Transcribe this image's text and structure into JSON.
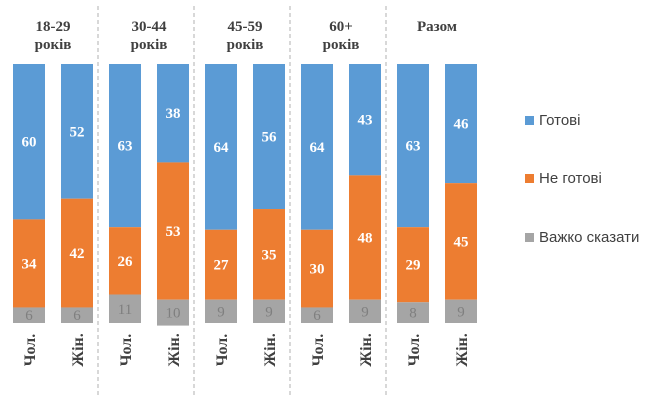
{
  "chart_data": {
    "type": "bar",
    "stacked": true,
    "percent": true,
    "ylim": [
      0,
      100
    ],
    "groups": [
      {
        "label_line1": "18-29",
        "label_line2": "років",
        "categories": [
          "Чол.",
          "Жін."
        ]
      },
      {
        "label_line1": "30-44",
        "label_line2": "років",
        "categories": [
          "Чол.",
          "Жін."
        ]
      },
      {
        "label_line1": "45-59",
        "label_line2": "років",
        "categories": [
          "Чол.",
          "Жін."
        ]
      },
      {
        "label_line1": "60+",
        "label_line2": "років",
        "categories": [
          "Чол.",
          "Жін."
        ]
      },
      {
        "label_line1": "Разом",
        "label_line2": "",
        "categories": [
          "Чол.",
          "Жін."
        ]
      }
    ],
    "series": [
      {
        "name": "Готові",
        "color": "#5b9bd5",
        "values": [
          60,
          52,
          63,
          38,
          64,
          56,
          64,
          43,
          63,
          46
        ]
      },
      {
        "name": "Не готові",
        "color": "#ed7d31",
        "values": [
          34,
          42,
          26,
          53,
          27,
          35,
          30,
          48,
          29,
          45
        ]
      },
      {
        "name": "Важко сказати",
        "color": "#a5a5a5",
        "values": [
          6,
          6,
          11,
          10,
          9,
          9,
          6,
          9,
          8,
          9
        ]
      }
    ],
    "legend_position": "right",
    "grid": false
  }
}
